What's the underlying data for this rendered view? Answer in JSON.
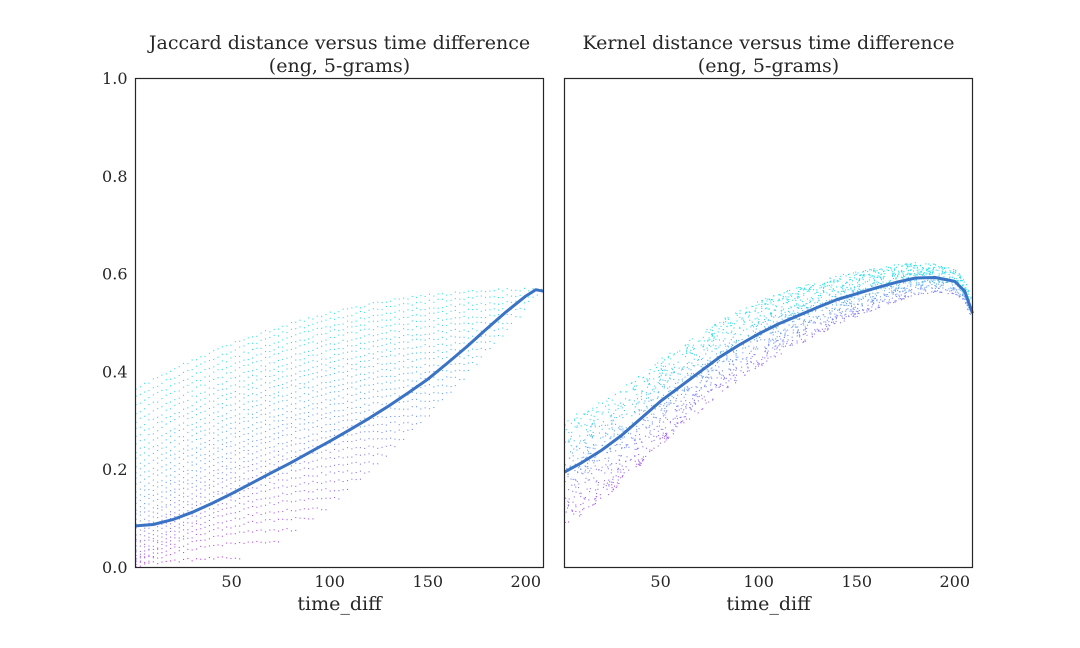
{
  "chart_data": [
    {
      "type": "scatter",
      "title_line1": "Jaccard distance versus time difference",
      "title_line2": "(eng, 5-grams)",
      "xlabel": "time_diff",
      "ylabel": "",
      "xlim": [
        1,
        209
      ],
      "ylim": [
        0.0,
        1.0
      ],
      "xticks": [
        "50",
        "100",
        "150",
        "200"
      ],
      "xtick_values": [
        50,
        100,
        150,
        200
      ],
      "yticks": [
        "0.0",
        "0.2",
        "0.4",
        "0.6",
        "0.8",
        "1.0"
      ],
      "ytick_values": [
        0.0,
        0.2,
        0.4,
        0.6,
        0.8,
        1.0
      ],
      "grid": false,
      "colormap": [
        "#c83ce6",
        "#7d8cf5",
        "#2ee0ee"
      ],
      "trend_color": "#3b73c4",
      "trend": {
        "x": [
          1,
          10,
          20,
          30,
          40,
          50,
          60,
          70,
          80,
          90,
          100,
          110,
          120,
          130,
          140,
          150,
          160,
          170,
          180,
          190,
          200,
          205,
          209
        ],
        "y": [
          0.085,
          0.088,
          0.098,
          0.113,
          0.131,
          0.151,
          0.172,
          0.193,
          0.214,
          0.236,
          0.258,
          0.281,
          0.305,
          0.33,
          0.357,
          0.385,
          0.418,
          0.452,
          0.488,
          0.523,
          0.555,
          0.568,
          0.565
        ]
      }
    },
    {
      "type": "scatter",
      "title_line1": "Kernel distance versus time difference",
      "title_line2": "(eng, 5-grams)",
      "xlabel": "time_diff",
      "ylabel": "",
      "xlim": [
        1,
        209
      ],
      "ylim": [
        0.0,
        1.0
      ],
      "xticks": [
        "50",
        "100",
        "150",
        "200"
      ],
      "xtick_values": [
        50,
        100,
        150,
        200
      ],
      "yticks": [],
      "ytick_values": [],
      "grid": false,
      "colormap": [
        "#c83ce6",
        "#7d8cf5",
        "#2ee0ee"
      ],
      "trend_color": "#3b73c4",
      "trend": {
        "x": [
          1,
          10,
          20,
          30,
          40,
          50,
          60,
          70,
          80,
          90,
          100,
          110,
          120,
          130,
          140,
          150,
          160,
          170,
          180,
          190,
          200,
          205,
          209
        ],
        "y": [
          0.195,
          0.215,
          0.24,
          0.27,
          0.305,
          0.34,
          0.37,
          0.4,
          0.43,
          0.455,
          0.478,
          0.498,
          0.515,
          0.532,
          0.548,
          0.56,
          0.572,
          0.583,
          0.592,
          0.593,
          0.585,
          0.565,
          0.52
        ]
      }
    }
  ]
}
